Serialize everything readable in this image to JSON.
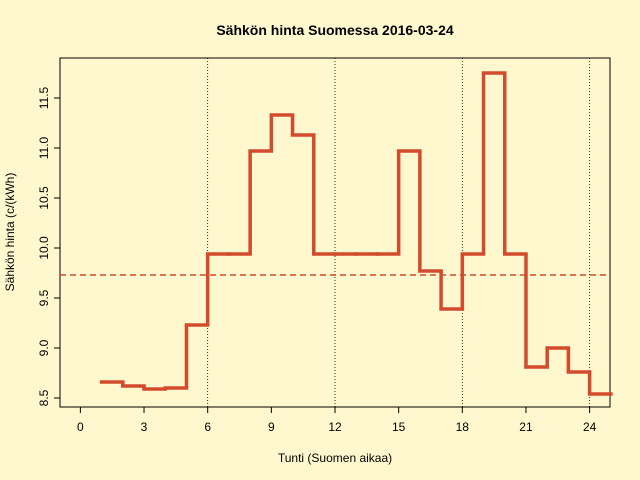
{
  "chart_data": {
    "type": "step",
    "title": "Sähkön hinta Suomessa 2016-03-24",
    "x_label": "Tunti (Suomen aikaa)",
    "y_label": "Sähkön hinta (c/(kWh)",
    "x": [
      1,
      2,
      3,
      4,
      5,
      6,
      7,
      8,
      9,
      10,
      11,
      12,
      13,
      14,
      15,
      16,
      17,
      18,
      19,
      20,
      21,
      22,
      23,
      24
    ],
    "series": [
      {
        "color": "#d24b2d",
        "values": [
          8.66,
          8.62,
          8.59,
          8.6,
          9.23,
          9.94,
          9.94,
          10.97,
          11.33,
          11.13,
          9.94,
          9.94,
          9.94,
          9.94,
          10.97,
          9.77,
          9.39,
          9.94,
          11.75,
          9.94,
          8.81,
          9.0,
          8.76,
          8.54
        ]
      }
    ],
    "mean": 9.73,
    "mean_color": "#d24b2d",
    "vlines": [
      6,
      12,
      18,
      24
    ],
    "xlim": [
      -0.96,
      24.96
    ],
    "ylim": [
      8.41,
      11.9
    ],
    "xticks": [
      0,
      3,
      6,
      9,
      12,
      15,
      18,
      21,
      24
    ],
    "yticks": [
      8.5,
      {
        "value": 9,
        "label": "9.0"
      },
      9.5,
      {
        "value": 10,
        "label": "10.0"
      },
      10.5,
      {
        "value": 11,
        "label": "11.0"
      },
      11.5
    ]
  }
}
